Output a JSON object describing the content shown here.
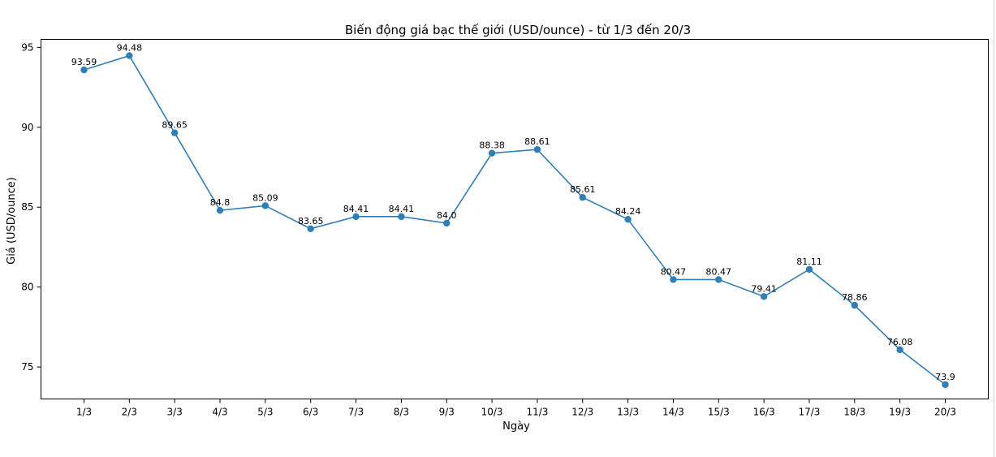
{
  "chart_data": {
    "type": "line",
    "title": "Biến động giá bạc thế giới (USD/ounce) - từ 1/3 đến 20/3",
    "xlabel": "Ngày",
    "ylabel": "Giá (USD/ounce)",
    "categories": [
      "1/3",
      "2/3",
      "3/3",
      "4/3",
      "5/3",
      "6/3",
      "7/3",
      "8/3",
      "9/3",
      "10/3",
      "11/3",
      "12/3",
      "13/3",
      "14/3",
      "15/3",
      "16/3",
      "17/3",
      "18/3",
      "19/3",
      "20/3"
    ],
    "values": [
      93.59,
      94.48,
      89.65,
      84.8,
      85.09,
      83.65,
      84.41,
      84.41,
      84.0,
      88.38,
      88.61,
      85.61,
      84.24,
      80.47,
      80.47,
      79.41,
      81.11,
      78.86,
      76.08,
      73.9
    ],
    "value_labels": [
      "93.59",
      "94.48",
      "89.65",
      "84.8",
      "85.09",
      "83.65",
      "84.41",
      "84.41",
      "84.0",
      "88.38",
      "88.61",
      "85.61",
      "84.24",
      "80.47",
      "80.47",
      "79.41",
      "81.11",
      "78.86",
      "76.08",
      "73.9"
    ],
    "ylim": [
      73,
      95.5
    ],
    "yticks": [
      75,
      80,
      85,
      90,
      95
    ],
    "grid": false,
    "color": "#2e7fb8"
  }
}
